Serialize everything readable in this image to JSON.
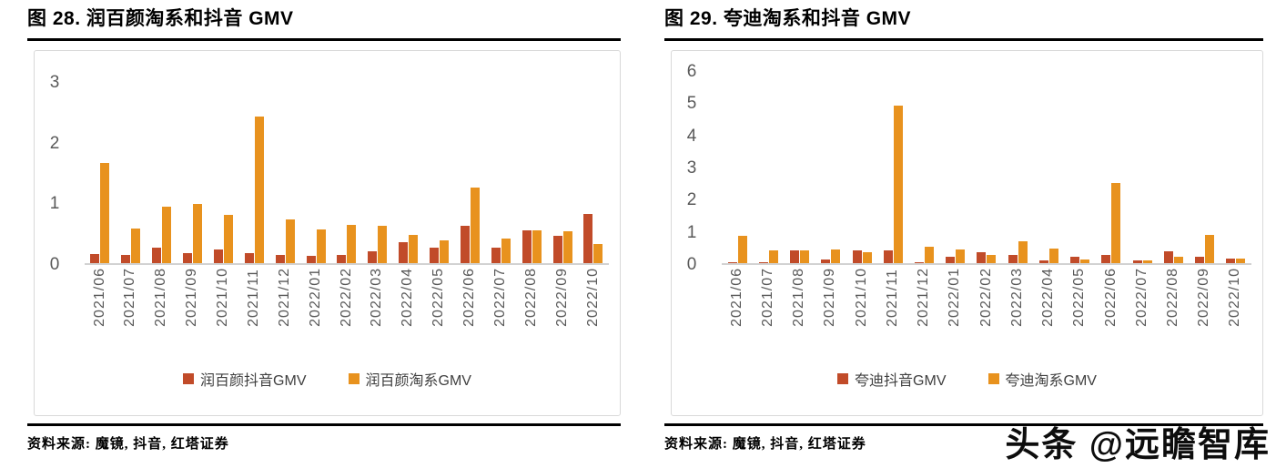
{
  "watermark": {
    "text": "头条 @远瞻智库"
  },
  "colors": {
    "douyin_bar": "#c14b29",
    "taoxi_bar": "#e8921e",
    "axis_text": "#595959",
    "legend_text": "#404040",
    "baseline": "#d2d2d2",
    "box_border": "#d9d9d9",
    "rule": "#000000"
  },
  "panels": [
    {
      "title": "图 28. 润百颜淘系和抖音 GMV",
      "source_label": "资料来源: 魔镜, 抖音, 红塔证券"
    },
    {
      "title": "图 29. 夸迪淘系和抖音 GMV",
      "source_label": "资料来源: 魔镜, 抖音, 红塔证券"
    }
  ],
  "chart_data": [
    {
      "type": "bar",
      "title": "图 28. 润百颜淘系和抖音 GMV",
      "categories": [
        "2021/06",
        "2021/07",
        "2021/08",
        "2021/09",
        "2021/10",
        "2021/11",
        "2021/12",
        "2022/01",
        "2022/02",
        "2022/03",
        "2022/04",
        "2022/05",
        "2022/06",
        "2022/07",
        "2022/08",
        "2022/09",
        "2022/10"
      ],
      "series": [
        {
          "key": "douyin-gmv",
          "name": "润百颜抖音GMV",
          "color": "#c14b29",
          "values": [
            0.15,
            0.13,
            0.26,
            0.16,
            0.23,
            0.16,
            0.13,
            0.12,
            0.14,
            0.19,
            0.35,
            0.26,
            0.62,
            0.26,
            0.54,
            0.45,
            0.81
          ]
        },
        {
          "key": "taoxi-gmv",
          "name": "润百颜淘系GMV",
          "color": "#e8921e",
          "values": [
            1.65,
            0.57,
            0.93,
            0.98,
            0.79,
            2.42,
            0.72,
            0.55,
            0.63,
            0.61,
            0.46,
            0.37,
            1.25,
            0.41,
            0.54,
            0.53,
            0.31
          ]
        }
      ],
      "xlabel": "",
      "ylabel": "",
      "ylim": [
        0,
        3
      ],
      "yticks": [
        0,
        1,
        2,
        3
      ],
      "grid": false,
      "legend_position": "bottom"
    },
    {
      "type": "bar",
      "title": "图 29. 夸迪淘系和抖音 GMV",
      "categories": [
        "2021/06",
        "2021/07",
        "2021/08",
        "2021/09",
        "2021/10",
        "2021/11",
        "2021/12",
        "2022/01",
        "2022/02",
        "2022/03",
        "2022/04",
        "2022/05",
        "2022/06",
        "2022/07",
        "2022/08",
        "2022/09",
        "2022/10"
      ],
      "series": [
        {
          "key": "douyin-gmv",
          "name": "夸迪抖音GMV",
          "color": "#c14b29",
          "values": [
            0.03,
            0.03,
            0.4,
            0.12,
            0.39,
            0.4,
            0.02,
            0.21,
            0.33,
            0.26,
            0.08,
            0.21,
            0.25,
            0.08,
            0.37,
            0.19,
            0.14
          ]
        },
        {
          "key": "taoxi-gmv",
          "name": "夸迪淘系GMV",
          "color": "#e8921e",
          "values": [
            0.85,
            0.39,
            0.39,
            0.42,
            0.33,
            4.9,
            0.5,
            0.42,
            0.26,
            0.68,
            0.45,
            0.12,
            2.5,
            0.08,
            0.19,
            0.87,
            0.13
          ]
        }
      ],
      "xlabel": "",
      "ylabel": "",
      "ylim": [
        0,
        6
      ],
      "yticks": [
        0,
        1,
        2,
        3,
        4,
        5,
        6
      ],
      "grid": false,
      "legend_position": "bottom"
    }
  ]
}
